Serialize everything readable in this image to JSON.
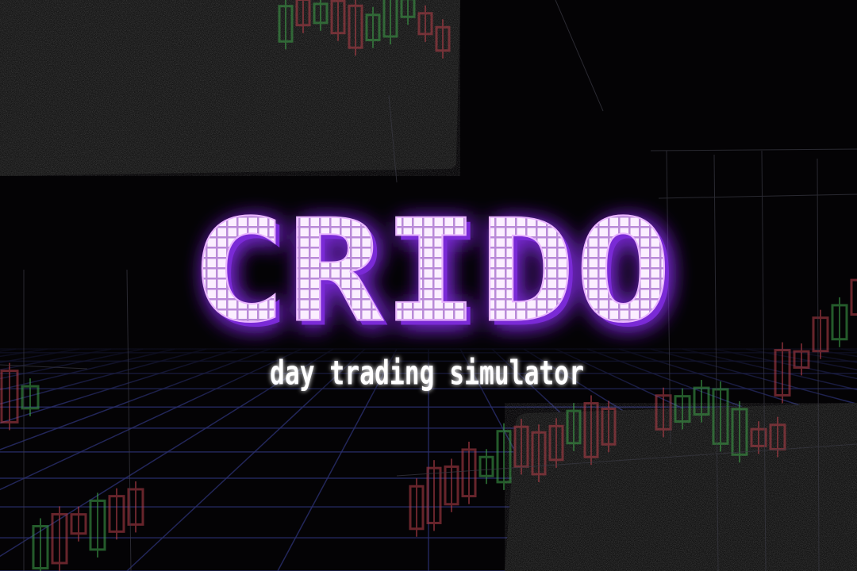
{
  "title": "CRIDO",
  "subtitle": "day trading simulator"
}
